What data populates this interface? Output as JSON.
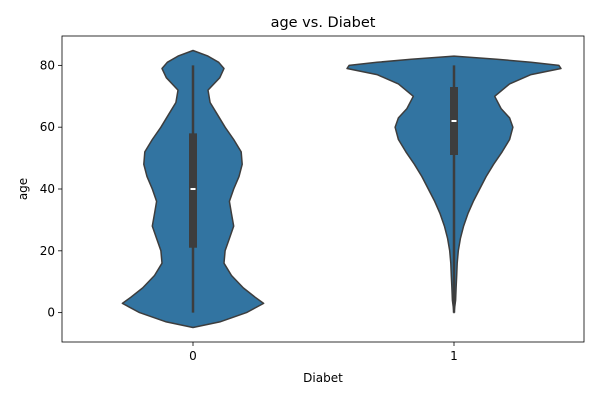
{
  "chart_data": {
    "type": "violin",
    "title": "age vs. Diabet",
    "xlabel": "Diabet",
    "ylabel": "age",
    "categories": [
      "0",
      "1"
    ],
    "ylim": [
      -9.5,
      89.5
    ],
    "yticks": [
      0,
      20,
      40,
      60,
      80
    ],
    "grid": false,
    "legend": "none",
    "fill_color": "#3274a1",
    "edge_color": "#3d3d3d",
    "box_color": "#3d3d3d",
    "median_color": "#ffffff",
    "violins": [
      {
        "category": "0",
        "min": 0,
        "q1": 21,
        "median": 40,
        "q3": 58,
        "max": 80,
        "density": [
          [
            -4.8,
            0.0
          ],
          [
            -3,
            0.25
          ],
          [
            0,
            0.5
          ],
          [
            3,
            0.66
          ],
          [
            5,
            0.58
          ],
          [
            8,
            0.47
          ],
          [
            12,
            0.36
          ],
          [
            16,
            0.29
          ],
          [
            20,
            0.3
          ],
          [
            24,
            0.34
          ],
          [
            28,
            0.38
          ],
          [
            32,
            0.36
          ],
          [
            36,
            0.34
          ],
          [
            40,
            0.38
          ],
          [
            44,
            0.43
          ],
          [
            48,
            0.46
          ],
          [
            52,
            0.45
          ],
          [
            56,
            0.38
          ],
          [
            60,
            0.3
          ],
          [
            64,
            0.23
          ],
          [
            68,
            0.16
          ],
          [
            72,
            0.14
          ],
          [
            76,
            0.25
          ],
          [
            79,
            0.29
          ],
          [
            81,
            0.24
          ],
          [
            83,
            0.14
          ],
          [
            84.8,
            0.0
          ]
        ]
      },
      {
        "category": "1",
        "min": 0,
        "q1": 51,
        "median": 62,
        "q3": 73,
        "max": 80,
        "density": [
          [
            0,
            0.0
          ],
          [
            4,
            0.015
          ],
          [
            8,
            0.02
          ],
          [
            12,
            0.025
          ],
          [
            16,
            0.03
          ],
          [
            20,
            0.04
          ],
          [
            24,
            0.06
          ],
          [
            28,
            0.09
          ],
          [
            32,
            0.13
          ],
          [
            36,
            0.18
          ],
          [
            40,
            0.24
          ],
          [
            44,
            0.3
          ],
          [
            48,
            0.37
          ],
          [
            52,
            0.45
          ],
          [
            56,
            0.52
          ],
          [
            60,
            0.55
          ],
          [
            63,
            0.52
          ],
          [
            66,
            0.44
          ],
          [
            70,
            0.38
          ],
          [
            74,
            0.52
          ],
          [
            77,
            0.72
          ],
          [
            79,
            1.0
          ],
          [
            80,
            0.98
          ],
          [
            81,
            0.72
          ],
          [
            82,
            0.4
          ],
          [
            83,
            0.0
          ]
        ]
      }
    ]
  }
}
